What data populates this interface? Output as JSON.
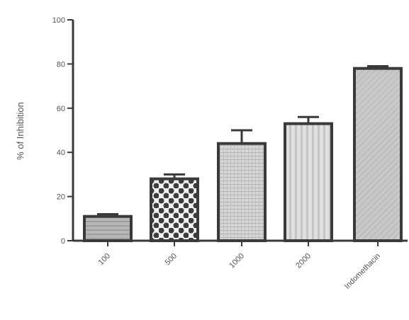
{
  "chart_data": {
    "type": "bar",
    "title": "",
    "xlabel": "",
    "ylabel": "% of Inhibition",
    "ylim": [
      0,
      100
    ],
    "yticks": [
      0,
      20,
      40,
      60,
      80,
      100
    ],
    "ytick_labels": [
      "0",
      "20",
      "40",
      "60",
      "80",
      "100"
    ],
    "categories": [
      "100",
      "500",
      "1000",
      "2000",
      "Indomethacin"
    ],
    "values": [
      11,
      28,
      44,
      53,
      78
    ],
    "errors": [
      1,
      2,
      6,
      3,
      1
    ],
    "grid": false,
    "legend": "none",
    "colors": {
      "axis": "#3a3a3a",
      "bar_outline": "#3a3a3a",
      "bar1_fill": "#b9b9b9",
      "bar2_fill": "#ffffff",
      "bar2_pattern": "#3d3d3d",
      "bar3_fill": "#cfcfcf",
      "bar4_fill": "#dcdcdc",
      "bar5_fill": "#c8c8c8"
    }
  }
}
